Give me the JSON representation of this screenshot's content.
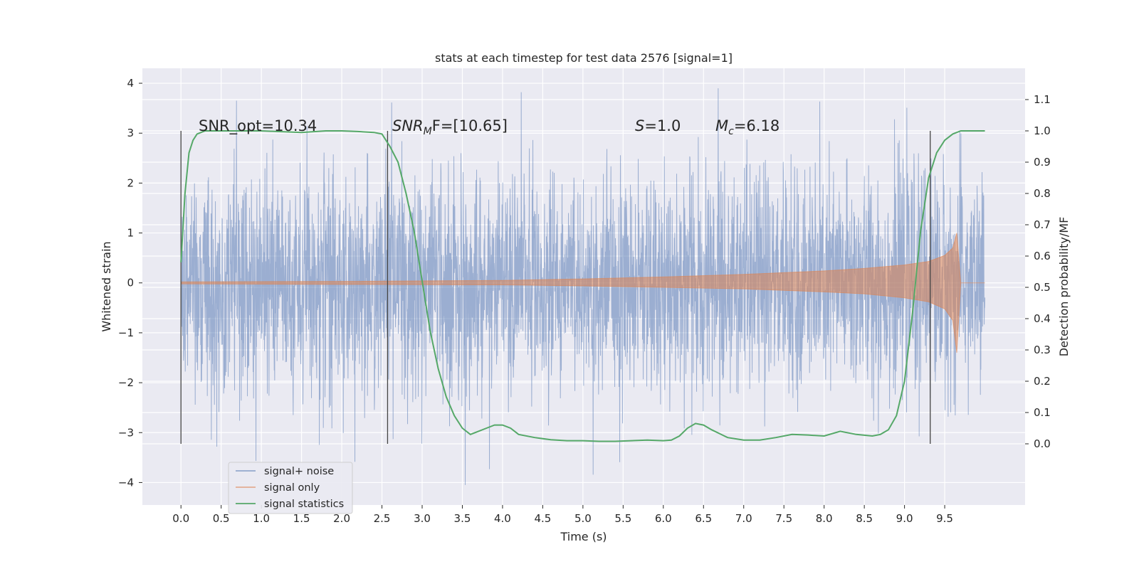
{
  "chart_data": {
    "type": "line",
    "title": "stats at each timestep for test data 2576 [signal=1]",
    "xlabel": "Time (s)",
    "ylabel": "Whitened strain",
    "y2label": "Detection probability/MF",
    "xlim": [
      -0.48,
      10.5
    ],
    "ylim": [
      -4.45,
      4.3
    ],
    "y2lim": [
      -0.2,
      1.2
    ],
    "xticks": [
      0.0,
      0.5,
      1.0,
      1.5,
      2.0,
      2.5,
      3.0,
      3.5,
      4.0,
      4.5,
      5.0,
      5.5,
      6.0,
      6.5,
      7.0,
      7.5,
      8.0,
      8.5,
      9.0,
      9.5
    ],
    "xtick_labels": [
      "0.0",
      "0.5",
      "1.0",
      "1.5",
      "2.0",
      "2.5",
      "3.0",
      "3.5",
      "4.0",
      "4.5",
      "5.0",
      "5.5",
      "6.0",
      "6.5",
      "7.0",
      "7.5",
      "8.0",
      "8.5",
      "9.0",
      "9.5"
    ],
    "yticks": [
      4,
      3,
      2,
      1,
      0,
      -1,
      -2,
      -3,
      -4
    ],
    "ytick_labels": [
      "4",
      "3",
      "2",
      "1",
      "0",
      "−1",
      "−2",
      "−3",
      "−4"
    ],
    "y2ticks": [
      1.1,
      1.0,
      0.9,
      0.8,
      0.7,
      0.6,
      0.5,
      0.4,
      0.3,
      0.2,
      0.1,
      0.0
    ],
    "y2tick_labels": [
      "1.1",
      "1.0",
      "0.9",
      "0.8",
      "0.7",
      "0.6",
      "0.5",
      "0.4",
      "0.3",
      "0.2",
      "0.1",
      "0.0"
    ],
    "grid": true,
    "legend_position": "lower-left",
    "vlines_x": [
      0.0,
      2.57,
      9.32
    ],
    "annotations": {
      "snr_opt": "SNR_opt=10.34",
      "snr_mf": "SNR_MF=[10.65]",
      "snr_mf_main": "SNR",
      "snr_mf_sub": "M",
      "snr_mf_rest": "F=[10.65]",
      "s_main": "S",
      "s_rest": "=1.0",
      "mc_main": "M",
      "mc_sub": "c",
      "mc_rest": "=6.18"
    },
    "series": [
      {
        "name": "signal+ noise",
        "color": "#4c72b0",
        "kind": "noise-envelope",
        "x_range": [
          0.0,
          10.0
        ],
        "typical_amplitude": 1.1,
        "min": -4.05,
        "max": 3.9
      },
      {
        "name": "signal only",
        "color": "#dd8452",
        "kind": "chirp-envelope",
        "x": [
          0.0,
          2.0,
          4.0,
          5.0,
          6.0,
          7.0,
          8.0,
          8.5,
          9.0,
          9.3,
          9.5,
          9.6,
          9.65,
          9.7,
          10.0
        ],
        "upper": [
          0.02,
          0.03,
          0.05,
          0.08,
          0.12,
          0.17,
          0.24,
          0.29,
          0.36,
          0.43,
          0.55,
          0.7,
          1.0,
          0.0,
          0.0
        ],
        "lower": [
          -0.02,
          -0.03,
          -0.04,
          -0.06,
          -0.09,
          -0.12,
          -0.18,
          -0.22,
          -0.3,
          -0.38,
          -0.52,
          -0.75,
          -1.4,
          0.0,
          0.0
        ]
      },
      {
        "name": "signal statistics",
        "color": "#55a868",
        "x": [
          0.0,
          0.05,
          0.1,
          0.15,
          0.2,
          0.3,
          0.5,
          0.8,
          1.0,
          1.2,
          1.5,
          1.8,
          2.0,
          2.2,
          2.4,
          2.5,
          2.6,
          2.7,
          2.8,
          2.9,
          3.0,
          3.1,
          3.2,
          3.3,
          3.4,
          3.5,
          3.6,
          3.7,
          3.8,
          3.9,
          4.0,
          4.1,
          4.2,
          4.4,
          4.6,
          4.8,
          5.0,
          5.2,
          5.4,
          5.6,
          5.8,
          6.0,
          6.1,
          6.2,
          6.3,
          6.4,
          6.5,
          6.6,
          6.8,
          7.0,
          7.2,
          7.4,
          7.6,
          7.8,
          8.0,
          8.2,
          8.4,
          8.6,
          8.7,
          8.8,
          8.9,
          9.0,
          9.1,
          9.2,
          9.3,
          9.4,
          9.5,
          9.6,
          9.7,
          9.8,
          9.9,
          10.0
        ],
        "y": [
          0.58,
          0.8,
          0.93,
          0.97,
          0.99,
          1.0,
          1.0,
          1.0,
          1.0,
          0.998,
          0.995,
          1.0,
          1.0,
          0.998,
          0.995,
          0.99,
          0.95,
          0.9,
          0.8,
          0.68,
          0.52,
          0.36,
          0.24,
          0.15,
          0.09,
          0.05,
          0.03,
          0.04,
          0.05,
          0.06,
          0.06,
          0.05,
          0.03,
          0.02,
          0.013,
          0.01,
          0.01,
          0.008,
          0.008,
          0.01,
          0.012,
          0.01,
          0.012,
          0.025,
          0.05,
          0.065,
          0.06,
          0.045,
          0.02,
          0.012,
          0.012,
          0.02,
          0.03,
          0.028,
          0.025,
          0.04,
          0.03,
          0.025,
          0.03,
          0.045,
          0.09,
          0.2,
          0.42,
          0.68,
          0.85,
          0.93,
          0.97,
          0.99,
          1.0,
          1.0,
          1.0,
          1.0
        ]
      }
    ]
  }
}
